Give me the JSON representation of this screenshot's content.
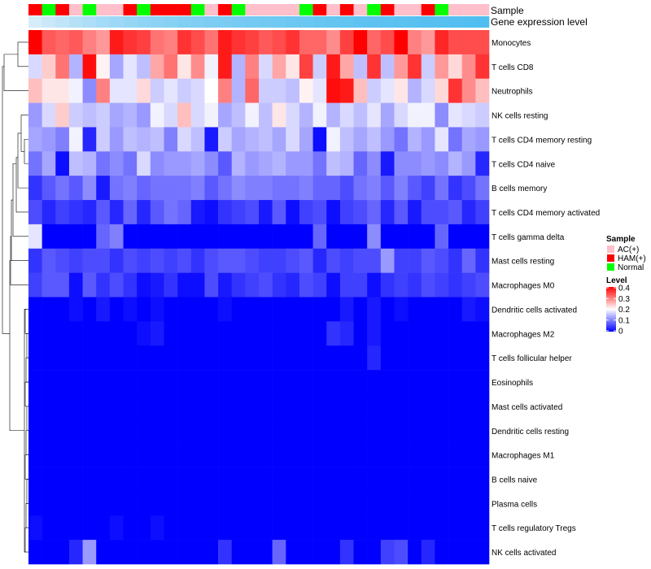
{
  "chart_data": {
    "type": "heatmap",
    "annotation_labels": {
      "sample": "Sample",
      "gene_expression": "Gene expression level"
    },
    "legend": {
      "sample_title": "Sample",
      "sample_entries": [
        {
          "label": "AC(+)",
          "color": "#ffc0cb"
        },
        {
          "label": "HAM(+)",
          "color": "#ff0000"
        },
        {
          "label": "Normal",
          "color": "#00ff00"
        }
      ],
      "level_title": "Level",
      "level_ticks": [
        "0.4",
        "0.3",
        "0.2",
        "0.1",
        "0"
      ],
      "level_range": [
        0,
        0.4
      ]
    },
    "colors": {
      "low": "#0000ff",
      "mid": "#ffffff",
      "high": "#ff0000",
      "mid_value": 0.2
    },
    "sample_groups": [
      "HAM(+)",
      "Normal",
      "HAM(+)",
      "AC(+)",
      "Normal",
      "AC(+)",
      "AC(+)",
      "HAM(+)",
      "Normal",
      "HAM(+)",
      "HAM(+)",
      "HAM(+)",
      "Normal",
      "AC(+)",
      "HAM(+)",
      "Normal",
      "AC(+)",
      "AC(+)",
      "AC(+)",
      "AC(+)",
      "Normal",
      "HAM(+)",
      "AC(+)",
      "HAM(+)",
      "AC(+)",
      "Normal",
      "HAM(+)",
      "AC(+)",
      "AC(+)",
      "HAM(+)",
      "Normal",
      "AC(+)",
      "AC(+)",
      "AC(+)"
    ],
    "gene_expression_level": [
      0.05,
      0.12,
      0.2,
      0.28,
      0.34,
      0.4,
      0.45,
      0.5,
      0.54,
      0.58,
      0.61,
      0.64,
      0.66,
      0.68,
      0.7,
      0.72,
      0.74,
      0.76,
      0.78,
      0.8,
      0.82,
      0.84,
      0.86,
      0.88,
      0.9,
      0.91,
      0.92,
      0.93,
      0.94,
      0.95,
      0.96,
      0.97,
      0.98,
      1.0
    ],
    "rows": [
      {
        "name": "Monocytes",
        "values": [
          0.4,
          0.33,
          0.32,
          0.33,
          0.3,
          0.28,
          0.38,
          0.36,
          0.35,
          0.31,
          0.3,
          0.36,
          0.34,
          0.31,
          0.38,
          0.36,
          0.35,
          0.33,
          0.34,
          0.36,
          0.32,
          0.32,
          0.29,
          0.35,
          0.4,
          0.32,
          0.34,
          0.4,
          0.3,
          0.28,
          0.37,
          0.34,
          0.34,
          0.34
        ]
      },
      {
        "name": "T cells CD8",
        "values": [
          0.17,
          0.24,
          0.31,
          0.14,
          0.39,
          0.21,
          0.13,
          0.18,
          0.15,
          0.27,
          0.31,
          0.22,
          0.29,
          0.19,
          0.38,
          0.14,
          0.3,
          0.17,
          0.27,
          0.22,
          0.35,
          0.16,
          0.38,
          0.27,
          0.15,
          0.36,
          0.15,
          0.28,
          0.36,
          0.16,
          0.28,
          0.23,
          0.29,
          0.36
        ]
      },
      {
        "name": "Neutrophils",
        "values": [
          0.25,
          0.22,
          0.22,
          0.19,
          0.11,
          0.3,
          0.18,
          0.18,
          0.23,
          0.16,
          0.18,
          0.16,
          0.17,
          0.2,
          0.3,
          0.14,
          0.32,
          0.16,
          0.16,
          0.15,
          0.21,
          0.18,
          0.39,
          0.38,
          0.25,
          0.16,
          0.18,
          0.22,
          0.14,
          0.17,
          0.23,
          0.36,
          0.29,
          0.25
        ]
      },
      {
        "name": "NK cells resting",
        "values": [
          0.12,
          0.17,
          0.24,
          0.16,
          0.15,
          0.16,
          0.13,
          0.14,
          0.12,
          0.19,
          0.17,
          0.25,
          0.17,
          0.19,
          0.13,
          0.15,
          0.19,
          0.15,
          0.22,
          0.17,
          0.14,
          0.19,
          0.14,
          0.17,
          0.15,
          0.18,
          0.13,
          0.17,
          0.19,
          0.19,
          0.11,
          0.18,
          0.17,
          0.16
        ]
      },
      {
        "name": "T cells CD4 memory resting",
        "values": [
          0.13,
          0.12,
          0.1,
          0.19,
          0.03,
          0.16,
          0.12,
          0.15,
          0.14,
          0.15,
          0.1,
          0.17,
          0.15,
          0.02,
          0.16,
          0.13,
          0.14,
          0.15,
          0.13,
          0.17,
          0.13,
          0.01,
          0.19,
          0.15,
          0.13,
          0.15,
          0.12,
          0.09,
          0.14,
          0.12,
          0.18,
          0.09,
          0.13,
          0.12
        ]
      },
      {
        "name": "T cells CD4 naive",
        "values": [
          0.09,
          0.13,
          0.01,
          0.15,
          0.14,
          0.09,
          0.11,
          0.09,
          0.17,
          0.11,
          0.12,
          0.12,
          0.13,
          0.11,
          0.07,
          0.14,
          0.12,
          0.13,
          0.14,
          0.12,
          0.12,
          0.09,
          0.15,
          0.14,
          0.08,
          0.11,
          0.02,
          0.11,
          0.11,
          0.12,
          0.11,
          0.14,
          0.12,
          0.03
        ]
      },
      {
        "name": "B cells memory",
        "values": [
          0.04,
          0.07,
          0.09,
          0.07,
          0.11,
          0.02,
          0.09,
          0.1,
          0.08,
          0.09,
          0.09,
          0.09,
          0.1,
          0.07,
          0.09,
          0.11,
          0.1,
          0.1,
          0.09,
          0.09,
          0.1,
          0.08,
          0.08,
          0.06,
          0.09,
          0.1,
          0.07,
          0.1,
          0.07,
          0.05,
          0.09,
          0.04,
          0.06,
          0.09
        ]
      },
      {
        "name": "T cells CD4 memory activated",
        "values": [
          0.06,
          0.03,
          0.05,
          0.04,
          0.03,
          0.07,
          0.03,
          0.08,
          0.03,
          0.07,
          0.09,
          0.08,
          0.02,
          0.01,
          0.04,
          0.05,
          0.06,
          0.02,
          0.07,
          0.01,
          0.05,
          0.06,
          0.01,
          0.05,
          0.06,
          0.08,
          0.03,
          0.07,
          0.02,
          0.06,
          0.06,
          0.07,
          0.03,
          0.05
        ]
      },
      {
        "name": "T cells gamma delta",
        "values": [
          0.18,
          0.0,
          0.0,
          0.0,
          0.0,
          0.08,
          0.1,
          0.0,
          0.0,
          0.0,
          0.0,
          0.0,
          0.0,
          0.0,
          0.0,
          0.0,
          0.0,
          0.0,
          0.0,
          0.0,
          0.0,
          0.08,
          0.0,
          0.0,
          0.0,
          0.11,
          0.0,
          0.0,
          0.0,
          0.0,
          0.08,
          0.0,
          0.0,
          0.0
        ]
      },
      {
        "name": "Mast cells resting",
        "values": [
          0.04,
          0.07,
          0.06,
          0.05,
          0.06,
          0.06,
          0.04,
          0.06,
          0.05,
          0.06,
          0.05,
          0.06,
          0.04,
          0.06,
          0.07,
          0.07,
          0.06,
          0.05,
          0.05,
          0.06,
          0.07,
          0.03,
          0.06,
          0.05,
          0.06,
          0.06,
          0.12,
          0.05,
          0.05,
          0.07,
          0.06,
          0.04,
          0.08,
          0.04
        ]
      },
      {
        "name": "Macrophages M0",
        "values": [
          0.05,
          0.07,
          0.07,
          0.01,
          0.07,
          0.04,
          0.06,
          0.04,
          0.01,
          0.02,
          0.04,
          0.01,
          0.01,
          0.06,
          0.02,
          0.04,
          0.05,
          0.06,
          0.04,
          0.03,
          0.06,
          0.05,
          0.01,
          0.05,
          0.05,
          0.01,
          0.04,
          0.05,
          0.04,
          0.06,
          0.05,
          0.04,
          0.05,
          0.06
        ]
      },
      {
        "name": "Dendritic cells activated",
        "values": [
          0.0,
          0.0,
          0.0,
          0.01,
          0.0,
          0.02,
          0.0,
          0.01,
          0.0,
          0.01,
          0.0,
          0.0,
          0.0,
          0.0,
          0.01,
          0.0,
          0.0,
          0.0,
          0.0,
          0.0,
          0.0,
          0.0,
          0.0,
          0.02,
          0.0,
          0.02,
          0.0,
          0.01,
          0.0,
          0.0,
          0.0,
          0.0,
          0.02,
          0.01
        ]
      },
      {
        "name": "Macrophages M2",
        "values": [
          0.0,
          0.0,
          0.0,
          0.0,
          0.0,
          0.0,
          0.0,
          0.0,
          0.01,
          0.02,
          0.0,
          0.0,
          0.0,
          0.0,
          0.0,
          0.0,
          0.0,
          0.0,
          0.0,
          0.0,
          0.0,
          0.0,
          0.04,
          0.03,
          0.0,
          0.02,
          0.0,
          0.0,
          0.0,
          0.0,
          0.0,
          0.0,
          0.0,
          0.0
        ]
      },
      {
        "name": "T cells follicular helper",
        "values": [
          0.0,
          0.0,
          0.0,
          0.0,
          0.0,
          0.0,
          0.0,
          0.0,
          0.0,
          0.0,
          0.0,
          0.0,
          0.0,
          0.0,
          0.0,
          0.0,
          0.0,
          0.0,
          0.0,
          0.0,
          0.0,
          0.0,
          0.0,
          0.0,
          0.0,
          0.03,
          0.0,
          0.0,
          0.0,
          0.0,
          0.0,
          0.0,
          0.0,
          0.0
        ]
      },
      {
        "name": "Eosinophils",
        "values": [
          0.0,
          0.0,
          0.0,
          0.0,
          0.0,
          0.0,
          0.0,
          0.0,
          0.0,
          0.0,
          0.0,
          0.0,
          0.0,
          0.0,
          0.0,
          0.0,
          0.0,
          0.0,
          0.0,
          0.0,
          0.0,
          0.0,
          0.0,
          0.0,
          0.0,
          0.0,
          0.0,
          0.0,
          0.0,
          0.0,
          0.0,
          0.0,
          0.0,
          0.0
        ]
      },
      {
        "name": "Mast cells activated",
        "values": [
          0.0,
          0.0,
          0.0,
          0.0,
          0.0,
          0.0,
          0.0,
          0.0,
          0.0,
          0.0,
          0.0,
          0.0,
          0.0,
          0.0,
          0.0,
          0.0,
          0.0,
          0.0,
          0.0,
          0.0,
          0.0,
          0.0,
          0.0,
          0.0,
          0.0,
          0.0,
          0.0,
          0.0,
          0.0,
          0.0,
          0.0,
          0.0,
          0.0,
          0.0
        ]
      },
      {
        "name": "Dendritic cells resting",
        "values": [
          0.0,
          0.0,
          0.0,
          0.0,
          0.0,
          0.0,
          0.0,
          0.0,
          0.0,
          0.0,
          0.0,
          0.0,
          0.0,
          0.0,
          0.0,
          0.0,
          0.0,
          0.0,
          0.0,
          0.0,
          0.0,
          0.0,
          0.0,
          0.0,
          0.0,
          0.0,
          0.0,
          0.0,
          0.0,
          0.0,
          0.0,
          0.0,
          0.0,
          0.0
        ]
      },
      {
        "name": "Macrophages M1",
        "values": [
          0.0,
          0.0,
          0.0,
          0.0,
          0.0,
          0.0,
          0.0,
          0.0,
          0.0,
          0.0,
          0.0,
          0.0,
          0.0,
          0.0,
          0.0,
          0.0,
          0.0,
          0.0,
          0.0,
          0.0,
          0.0,
          0.0,
          0.0,
          0.0,
          0.0,
          0.0,
          0.0,
          0.0,
          0.0,
          0.0,
          0.0,
          0.0,
          0.0,
          0.0
        ]
      },
      {
        "name": "B cells naive",
        "values": [
          0.0,
          0.0,
          0.0,
          0.0,
          0.0,
          0.0,
          0.0,
          0.0,
          0.0,
          0.0,
          0.0,
          0.0,
          0.0,
          0.0,
          0.0,
          0.0,
          0.0,
          0.0,
          0.0,
          0.0,
          0.0,
          0.0,
          0.0,
          0.0,
          0.0,
          0.0,
          0.0,
          0.0,
          0.0,
          0.0,
          0.0,
          0.0,
          0.0,
          0.0
        ]
      },
      {
        "name": "Plasma cells",
        "values": [
          0.0,
          0.0,
          0.0,
          0.0,
          0.0,
          0.0,
          0.0,
          0.0,
          0.0,
          0.0,
          0.0,
          0.0,
          0.0,
          0.0,
          0.0,
          0.0,
          0.0,
          0.0,
          0.0,
          0.0,
          0.0,
          0.0,
          0.0,
          0.0,
          0.0,
          0.0,
          0.0,
          0.0,
          0.0,
          0.0,
          0.0,
          0.0,
          0.0,
          0.0
        ]
      },
      {
        "name": "T cells regulatory  Tregs",
        "values": [
          0.01,
          0.0,
          0.0,
          0.0,
          0.0,
          0.0,
          0.01,
          0.0,
          0.0,
          0.01,
          0.0,
          0.0,
          0.0,
          0.0,
          0.0,
          0.0,
          0.0,
          0.0,
          0.0,
          0.0,
          0.0,
          0.0,
          0.0,
          0.0,
          0.0,
          0.0,
          0.0,
          0.0,
          0.0,
          0.0,
          0.0,
          0.0,
          0.0,
          0.0
        ]
      },
      {
        "name": "NK cells activated",
        "values": [
          0.0,
          0.0,
          0.0,
          0.03,
          0.12,
          0.0,
          0.0,
          0.0,
          0.0,
          0.0,
          0.0,
          0.0,
          0.0,
          0.0,
          0.04,
          0.0,
          0.0,
          0.0,
          0.08,
          0.0,
          0.0,
          0.0,
          0.0,
          0.04,
          0.0,
          0.0,
          0.05,
          0.06,
          0.0,
          0.03,
          0.0,
          0.0,
          0.0,
          0.0
        ]
      }
    ]
  }
}
